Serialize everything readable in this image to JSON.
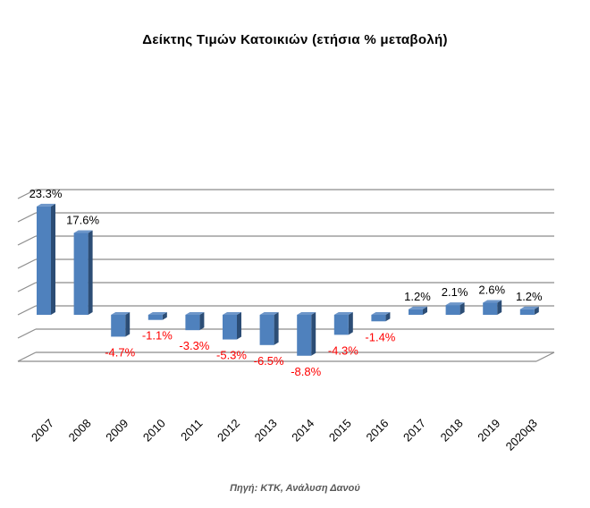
{
  "chart_data": {
    "type": "bar",
    "title": "Δείκτης Τιμών Κατοικιών (ετήσια % μεταβολή)",
    "source": "Πηγή: ΚΤΚ, Ανάλυση Δανού",
    "categories": [
      "2007",
      "2008",
      "2009",
      "2010",
      "2011",
      "2012",
      "2013",
      "2014",
      "2015",
      "2016",
      "2017",
      "2018",
      "2019",
      "2020q3"
    ],
    "values": [
      23.3,
      17.6,
      -4.7,
      -1.1,
      -3.3,
      -5.3,
      -6.5,
      -8.8,
      -4.3,
      -1.4,
      1.2,
      2.1,
      2.6,
      1.2
    ],
    "data_labels": [
      "23.3%",
      "17.6%",
      "-4.7%",
      "-1.1%",
      "-3.3%",
      "-5.3%",
      "-6.5%",
      "-8.8%",
      "-4.3%",
      "-1.4%",
      "1.2%",
      "2.1%",
      "2.6%",
      "1.2%"
    ],
    "ylim": [
      -10,
      25
    ],
    "grid": true,
    "legend": "none",
    "colors": {
      "bar_front": "#4f81bd",
      "bar_side": "#2c4d75",
      "bar_top": "#6d96c9",
      "positive_label": "#000000",
      "negative_label": "#ff0000",
      "grid": "#8c8c8c"
    }
  }
}
